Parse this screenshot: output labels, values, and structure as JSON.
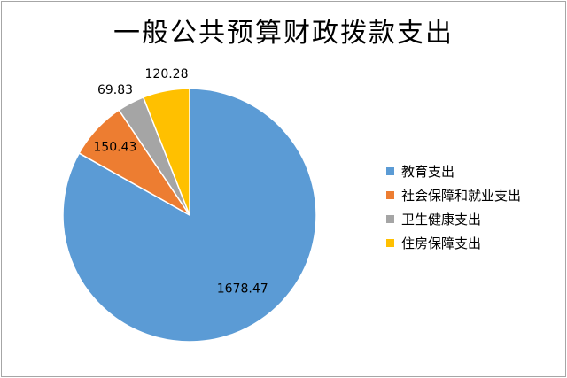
{
  "chart_data": {
    "type": "pie",
    "title": "一般公共预算财政拨款支出",
    "categories": [
      "教育支出",
      "社会保障和就业支出",
      "卫生健康支出",
      "住房保障支出"
    ],
    "values": [
      1678.47,
      150.43,
      69.83,
      120.28
    ],
    "colors": [
      "#5b9bd5",
      "#ed7d31",
      "#a5a5a5",
      "#ffc000"
    ],
    "legend": "right",
    "start": "12 o'clock",
    "direction": "clockwise"
  }
}
